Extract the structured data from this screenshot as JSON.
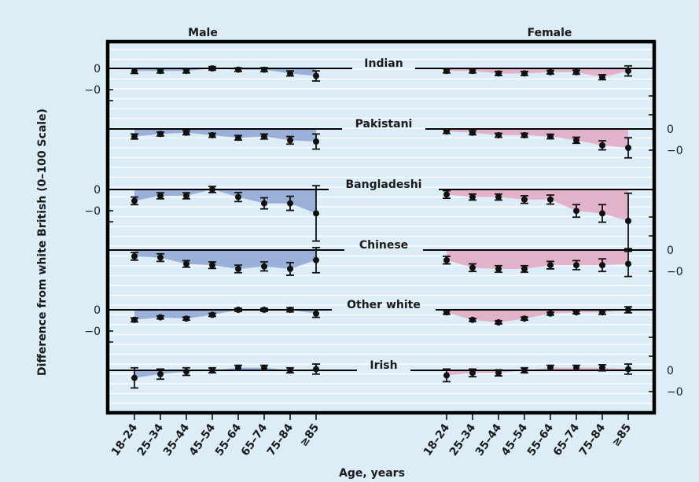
{
  "chart_data": {
    "type": "line",
    "ylabel": "Difference from white British (0–100 Scale)",
    "xlabel": "Age, years",
    "panels": [
      "Male",
      "Female"
    ],
    "age_groups": [
      "18–24",
      "25–34",
      "35–44",
      "45–54",
      "55–64",
      "65–74",
      "75–84",
      "≥85"
    ],
    "groups": [
      {
        "name": "Indian",
        "male": {
          "values": [
            -1,
            -1,
            -1,
            0,
            -0.5,
            -0.5,
            -2,
            -3
          ],
          "ci": [
            1,
            0.8,
            0.8,
            0.7,
            0.7,
            0.8,
            1,
            2
          ]
        },
        "female": {
          "values": [
            -1,
            -1,
            -2,
            -2,
            -1.5,
            -1.5,
            -3.5,
            -1
          ],
          "ci": [
            0.8,
            0.8,
            0.8,
            0.8,
            0.7,
            0.8,
            1,
            2
          ]
        }
      },
      {
        "name": "Pakistani",
        "male": {
          "values": [
            -3,
            -2,
            -1.5,
            -2.5,
            -3.5,
            -3,
            -4.5,
            -5
          ],
          "ci": [
            1,
            0.8,
            0.8,
            0.8,
            0.9,
            1,
            1.5,
            3
          ]
        },
        "female": {
          "values": [
            -1,
            -1.5,
            -2.5,
            -2.5,
            -3,
            -4.5,
            -6.5,
            -7.5
          ],
          "ci": [
            0.8,
            0.8,
            0.8,
            0.8,
            0.9,
            1.2,
            1.8,
            4
          ]
        }
      },
      {
        "name": "Bangladeshi",
        "male": {
          "values": [
            -4.5,
            -2.5,
            -2.5,
            0,
            -3,
            -5.5,
            -5.5,
            -9.5
          ],
          "ci": [
            1.5,
            1.2,
            1.2,
            1.2,
            1.8,
            2.2,
            2.8,
            11
          ]
        },
        "female": {
          "values": [
            -2,
            -3,
            -3,
            -4,
            -4,
            -8.5,
            -9.5,
            -12.5
          ],
          "ci": [
            1.5,
            1.2,
            1.2,
            1.5,
            1.8,
            2.5,
            3.5,
            11
          ]
        }
      },
      {
        "name": "Chinese",
        "male": {
          "values": [
            -2.5,
            -3,
            -5.5,
            -6,
            -7.5,
            -6.5,
            -7.5,
            -4
          ],
          "ci": [
            1.5,
            1.5,
            1.3,
            1.3,
            1.5,
            1.8,
            2.5,
            5
          ]
        },
        "female": {
          "values": [
            -4,
            -7,
            -7.5,
            -7.5,
            -6,
            -6,
            -6,
            -5.5
          ],
          "ci": [
            1.5,
            1.5,
            1.3,
            1.3,
            1.5,
            1.8,
            2.5,
            5
          ]
        }
      },
      {
        "name": "Other white",
        "male": {
          "values": [
            -4,
            -3,
            -3.5,
            -2,
            0,
            0,
            0,
            -1.5
          ],
          "ci": [
            0.8,
            0.6,
            0.6,
            0.6,
            0.6,
            0.6,
            0.8,
            1.5
          ]
        },
        "female": {
          "values": [
            -1,
            -4,
            -5,
            -3.5,
            -1.5,
            -1,
            -1,
            0
          ],
          "ci": [
            0.8,
            0.6,
            0.6,
            0.6,
            0.6,
            0.6,
            0.8,
            1.2
          ]
        }
      },
      {
        "name": "Irish",
        "male": {
          "values": [
            -3,
            -1.5,
            -0.5,
            0,
            1,
            1,
            0,
            0.5
          ],
          "ci": [
            4,
            2,
            1.5,
            1,
            1,
            1,
            1,
            2
          ]
        },
        "female": {
          "values": [
            -2,
            -1,
            -1,
            0,
            1,
            1,
            1,
            0.5
          ],
          "ci": [
            2.5,
            1.5,
            1.2,
            1,
            1,
            1,
            1.2,
            2
          ]
        }
      }
    ],
    "axis_labels": [
      "0",
      "−0"
    ],
    "colors": {
      "male_fill": "#8ea5d4",
      "female_fill": "#e3a6c2",
      "background": "#dcedf7",
      "gridline": "#ffffff",
      "axis": "#000000"
    }
  }
}
